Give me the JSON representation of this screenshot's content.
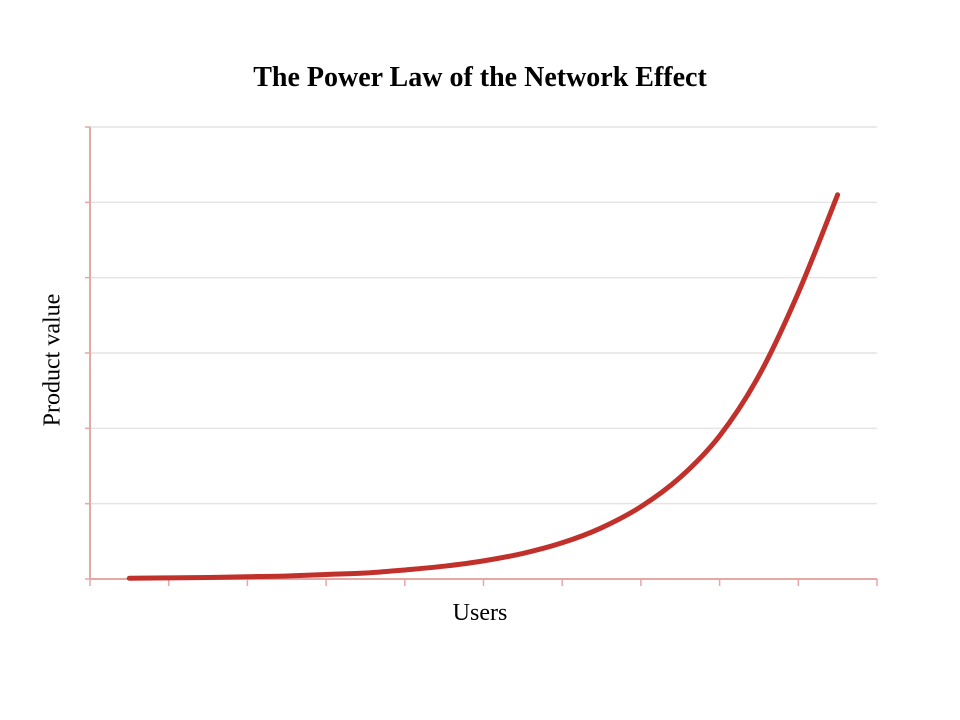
{
  "chart_data": {
    "type": "line",
    "title": "The Power Law of the Network Effect",
    "xlabel": "Users",
    "ylabel": "Product value",
    "x_tick_labels": [],
    "y_tick_labels": [],
    "grid": "horizontal",
    "legend": "none",
    "x_range": [
      0,
      10
    ],
    "y_range": [
      0,
      6
    ],
    "colors": {
      "line": "#c0312b",
      "axis": "#e6a7a7",
      "grid": "#e4e4e4"
    },
    "series": [
      {
        "x": [
          0.5,
          1,
          1.5,
          2,
          2.5,
          3,
          3.5,
          4,
          4.5,
          5,
          5.5,
          6,
          6.5,
          7,
          7.5,
          8,
          8.5,
          9,
          9.5
        ],
        "values": [
          0.01,
          0.015,
          0.02,
          0.03,
          0.04,
          0.06,
          0.08,
          0.12,
          0.17,
          0.24,
          0.34,
          0.48,
          0.68,
          0.96,
          1.35,
          1.9,
          2.7,
          3.8,
          5.1
        ]
      }
    ]
  }
}
